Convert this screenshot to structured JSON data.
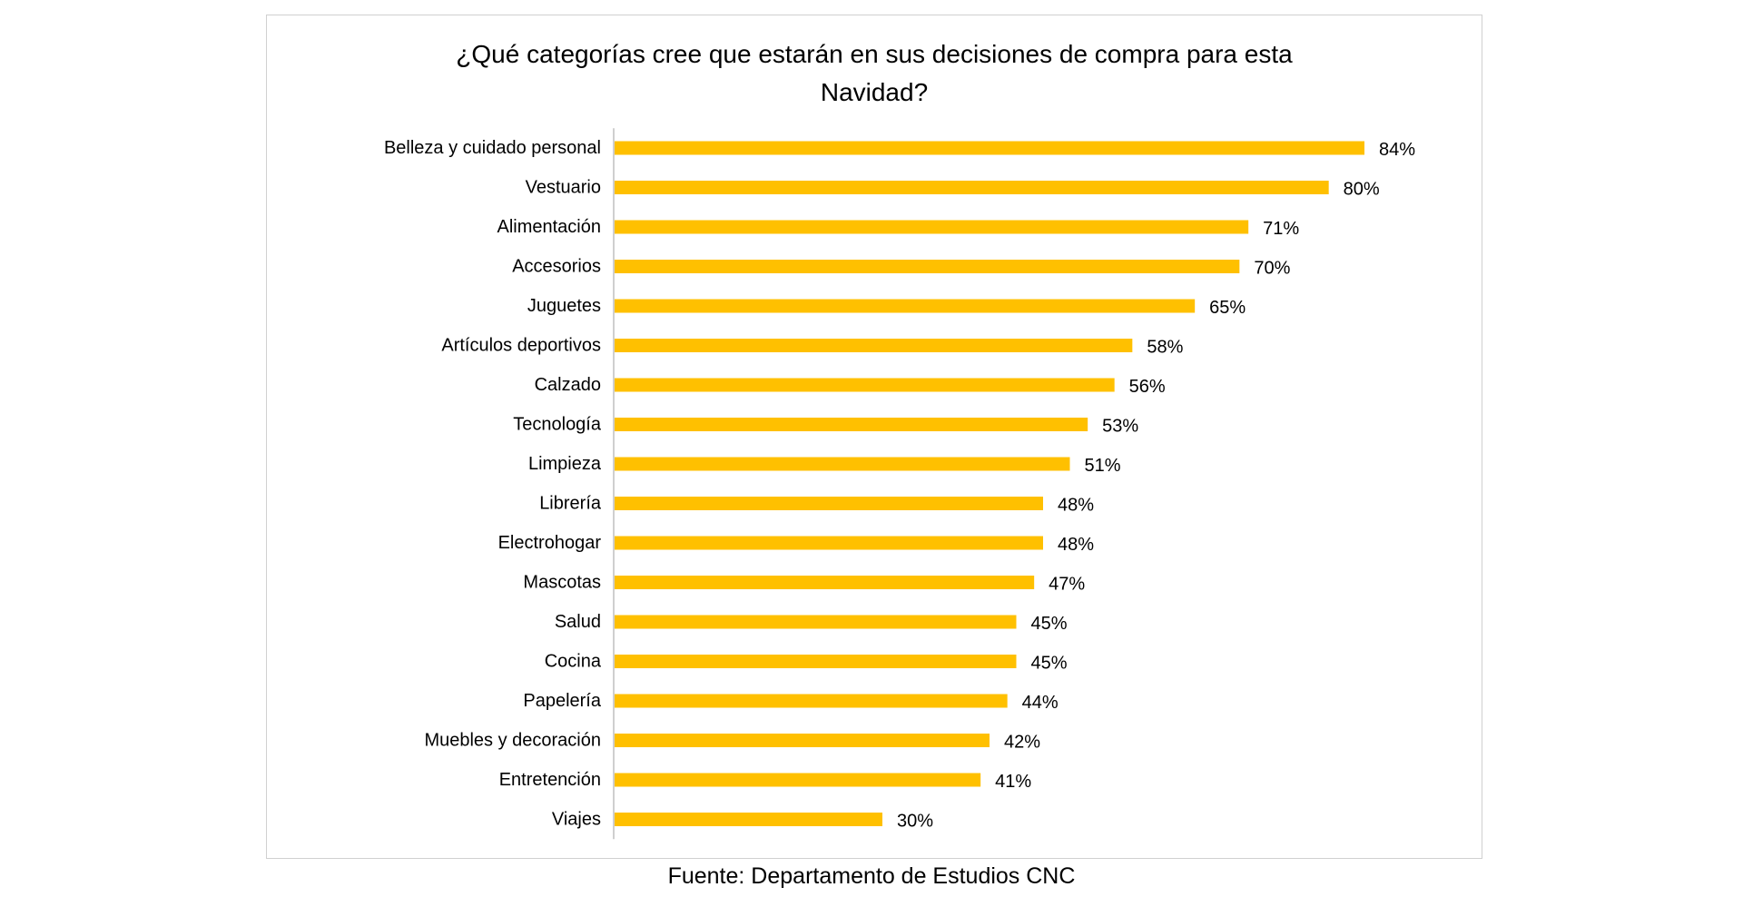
{
  "chart_data": {
    "type": "bar",
    "orientation": "horizontal",
    "title_lines": [
      "¿Qué categorías cree que estarán en sus decisiones de compra para esta",
      "Navidad?"
    ],
    "categories": [
      "Belleza y cuidado personal",
      "Vestuario",
      "Alimentación",
      "Accesorios",
      "Juguetes",
      "Artículos deportivos",
      "Calzado",
      "Tecnología",
      "Limpieza",
      "Librería",
      "Electrohogar",
      "Mascotas",
      "Salud",
      "Cocina",
      "Papelería",
      "Muebles y decoración",
      "Entretención",
      "Viajes"
    ],
    "values": [
      84,
      80,
      71,
      70,
      65,
      58,
      56,
      53,
      51,
      48,
      48,
      47,
      45,
      45,
      44,
      42,
      41,
      30
    ],
    "value_labels": [
      "84%",
      "80%",
      "71%",
      "70%",
      "65%",
      "58%",
      "56%",
      "53%",
      "51%",
      "48%",
      "48%",
      "47%",
      "45%",
      "45%",
      "44%",
      "42%",
      "41%",
      "30%"
    ],
    "unit": "%",
    "xlim": [
      0,
      84
    ],
    "grid": false,
    "legend": "none",
    "bar_color": "#FFC000",
    "axis_color": "#bfbfbf"
  },
  "source_note": "Fuente: Departamento de Estudios CNC"
}
